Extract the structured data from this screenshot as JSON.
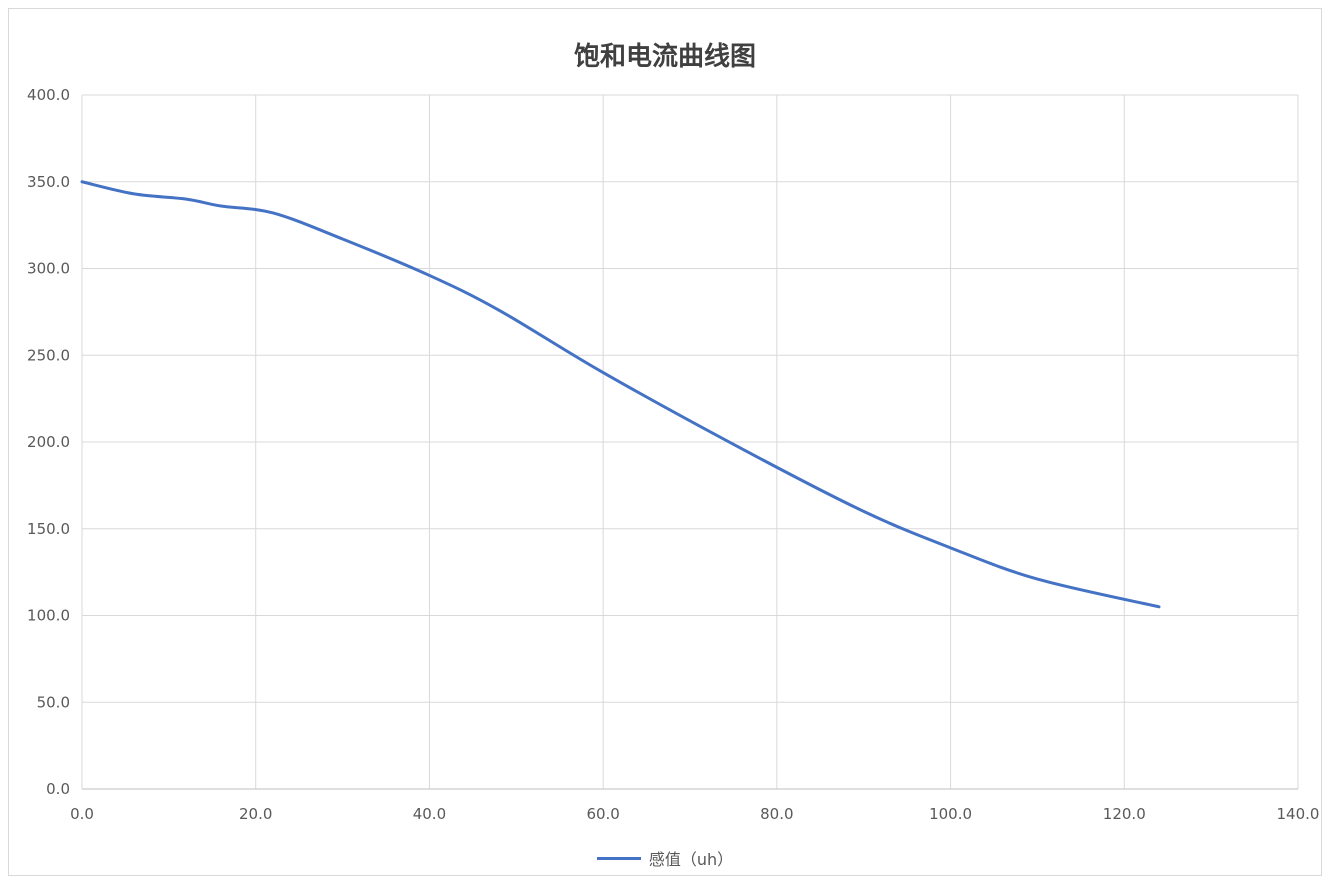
{
  "chart_data": {
    "type": "line",
    "title": "饱和电流曲线图",
    "xlabel": "",
    "ylabel": "",
    "xlim": [
      0,
      140
    ],
    "ylim": [
      0,
      400
    ],
    "x_ticks": [
      "0.0",
      "20.0",
      "40.0",
      "60.0",
      "80.0",
      "100.0",
      "120.0",
      "140.0"
    ],
    "y_ticks": [
      "0.0",
      "50.0",
      "100.0",
      "150.0",
      "200.0",
      "250.0",
      "300.0",
      "350.0",
      "400.0"
    ],
    "grid": true,
    "legend_position": "bottom",
    "series": [
      {
        "name": "感值（uh）",
        "color": "#4472c4",
        "x": [
          0,
          6,
          12,
          16,
          22,
          30,
          40,
          48,
          60,
          76,
          90,
          100,
          110,
          124
        ],
        "y": [
          350,
          343,
          340,
          336,
          332,
          317,
          296,
          276,
          240,
          196,
          160,
          139,
          121,
          105
        ]
      }
    ]
  }
}
